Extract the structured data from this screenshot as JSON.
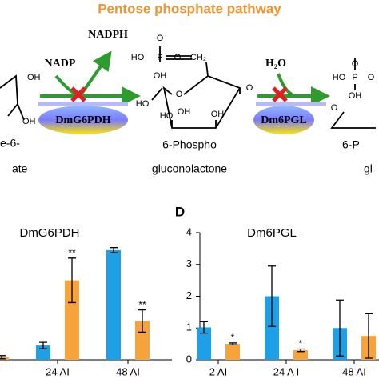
{
  "diagram": {
    "title": "Pentose phosphate pathway",
    "cofactors": [
      "NADP",
      "NADPH",
      "H₂O"
    ],
    "enzymes": [
      "DmG6PDH",
      "Dm6PGL"
    ],
    "molecules": [
      {
        "name_lines": [
          "e-6-",
          "ate"
        ]
      },
      {
        "name_lines": [
          "6-Phospho",
          "gluconolactone"
        ]
      },
      {
        "name_lines": [
          "6-P",
          "gl"
        ]
      }
    ],
    "atom_labels": [
      "OH",
      "OH",
      "O",
      "HO",
      "P",
      "O",
      "CH₂",
      "OH",
      "O",
      "O",
      "HO",
      "OH",
      "HO",
      "OH",
      "O",
      "HO",
      "P",
      "O",
      "OH",
      "O"
    ]
  },
  "chart_data": [
    {
      "type": "bar",
      "title": "DmG6PDH",
      "categories": [
        null,
        "24 AI",
        "48 AI"
      ],
      "ylim": [
        0,
        4
      ],
      "series": [
        {
          "color": "#1ea0e6",
          "values": [
            0.06,
            0.45,
            3.45
          ],
          "errors": [
            0.04,
            0.1,
            0.08
          ],
          "significance": [
            null,
            null,
            null
          ]
        },
        {
          "color": "#f5a33a",
          "values": [
            0.08,
            2.5,
            1.22
          ],
          "errors": [
            0.05,
            0.7,
            0.35
          ],
          "significance": [
            null,
            "**",
            "**"
          ]
        }
      ]
    },
    {
      "type": "bar",
      "panel": "D",
      "title": "Dm6PGL",
      "categories": [
        "2 AI",
        "24 A I",
        "48 AI"
      ],
      "ylim": [
        0,
        4
      ],
      "yticks": [
        0,
        1,
        2,
        3,
        4
      ],
      "series": [
        {
          "color": "#1ea0e6",
          "values": [
            1.02,
            2.0,
            1.0
          ],
          "errors": [
            0.18,
            0.95,
            0.88
          ],
          "significance": [
            null,
            null,
            null
          ]
        },
        {
          "color": "#f5a33a",
          "values": [
            0.5,
            0.3,
            0.75
          ],
          "errors": [
            0.03,
            0.04,
            0.7
          ],
          "significance": [
            "*",
            "*",
            null
          ]
        }
      ]
    }
  ]
}
